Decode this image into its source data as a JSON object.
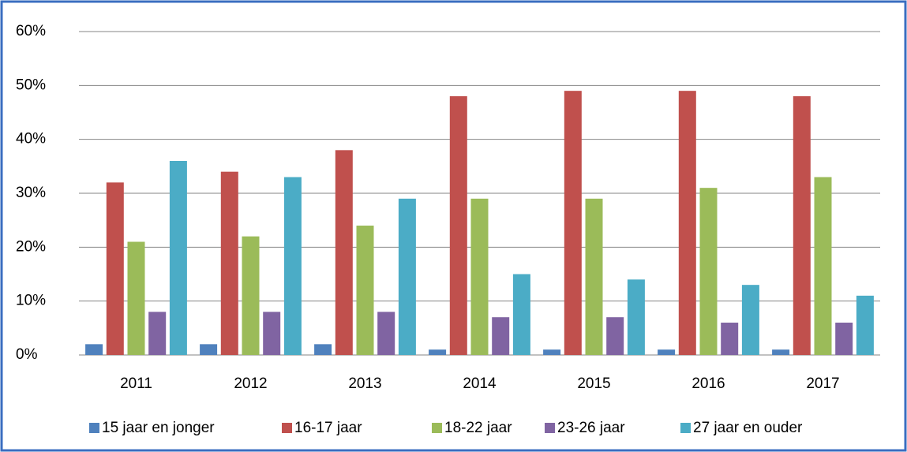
{
  "chart_data": {
    "type": "bar",
    "categories": [
      "2011",
      "2012",
      "2013",
      "2014",
      "2015",
      "2016",
      "2017"
    ],
    "series": [
      {
        "name": "15 jaar en jonger",
        "color": "#4f81bd",
        "values": [
          2,
          2,
          2,
          1,
          1,
          1,
          1
        ]
      },
      {
        "name": "16-17 jaar",
        "color": "#c0504d",
        "values": [
          32,
          34,
          38,
          48,
          49,
          49,
          48
        ]
      },
      {
        "name": "18-22 jaar",
        "color": "#9bbb59",
        "values": [
          21,
          22,
          24,
          29,
          29,
          31,
          33
        ]
      },
      {
        "name": "23-26 jaar",
        "color": "#8064a2",
        "values": [
          8,
          8,
          8,
          7,
          7,
          6,
          6
        ]
      },
      {
        "name": "27 jaar en ouder",
        "color": "#4bacc6",
        "values": [
          36,
          33,
          29,
          15,
          14,
          13,
          11
        ]
      }
    ],
    "ylim": [
      0,
      60
    ],
    "yticks": [
      {
        "value": 0,
        "label": "0%"
      },
      {
        "value": 10,
        "label": "10%"
      },
      {
        "value": 20,
        "label": "20%"
      },
      {
        "value": 30,
        "label": "30%"
      },
      {
        "value": 40,
        "label": "40%"
      },
      {
        "value": 50,
        "label": "50%"
      },
      {
        "value": 60,
        "label": "60%"
      }
    ],
    "grid": true,
    "legend": "bottom"
  }
}
